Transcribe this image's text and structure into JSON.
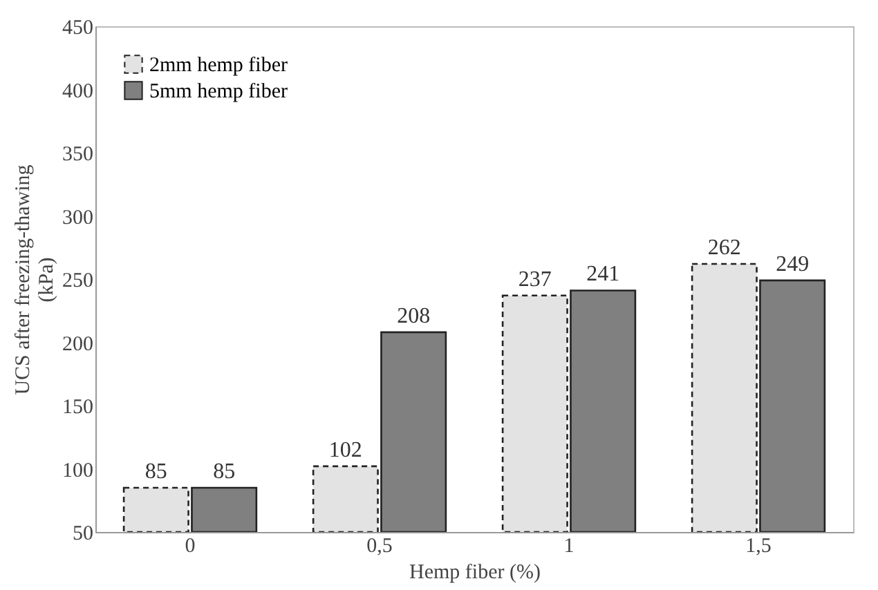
{
  "chart_data": {
    "type": "bar",
    "xlabel": "Hemp fiber (%)",
    "ylabel": "UCS after freezing-thawing (kPa)",
    "categories": [
      "0",
      "0,5",
      "1",
      "1,5"
    ],
    "series": [
      {
        "name": "2mm hemp fiber",
        "color": "#e3e3e3",
        "line_style": "dashed",
        "values": [
          85,
          102,
          237,
          262
        ]
      },
      {
        "name": "5mm hemp fiber",
        "color": "#808080",
        "line_style": "solid",
        "values": [
          85,
          208,
          241,
          249
        ]
      }
    ],
    "ylim": [
      50,
      450
    ],
    "yticks": [
      50,
      100,
      150,
      200,
      250,
      300,
      350,
      400,
      450
    ],
    "grid": false,
    "legend": "top left",
    "data_labels": true
  }
}
